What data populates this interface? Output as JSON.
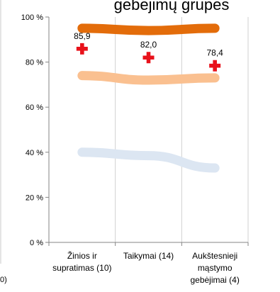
{
  "page": {
    "cut_label": "0)"
  },
  "chart_data": {
    "type": "line",
    "title": "gebėjimų grupės",
    "xlabel": "",
    "ylabel": "",
    "categories": [
      [
        "Žinios ir",
        "supratimas (10)"
      ],
      [
        "Taikymai (14)"
      ],
      [
        "Aukštesnieji",
        "mąstymo",
        "gebėjimai (4)"
      ]
    ],
    "ylim": [
      0,
      100
    ],
    "y_ticks": [
      0,
      20,
      40,
      60,
      80,
      100
    ],
    "y_tick_labels": [
      "0 %",
      "20 %",
      "40 %",
      "60 %",
      "80 %",
      "100 %"
    ],
    "grid": "vertical",
    "legend": "none",
    "series": [
      {
        "kind": "line",
        "color": "#E36C0A",
        "values": [
          95,
          94,
          95
        ]
      },
      {
        "kind": "line",
        "color": "#FAC090",
        "values": [
          74,
          72,
          73
        ]
      },
      {
        "kind": "line",
        "color": "#DCE6F2",
        "values": [
          40,
          38.5,
          33
        ]
      },
      {
        "kind": "marker",
        "marker": "plus-cross",
        "color": "#E8121B",
        "values": [
          85.9,
          82.0,
          78.4
        ],
        "labels": [
          "85,9",
          "82,0",
          "78,4"
        ]
      }
    ]
  }
}
